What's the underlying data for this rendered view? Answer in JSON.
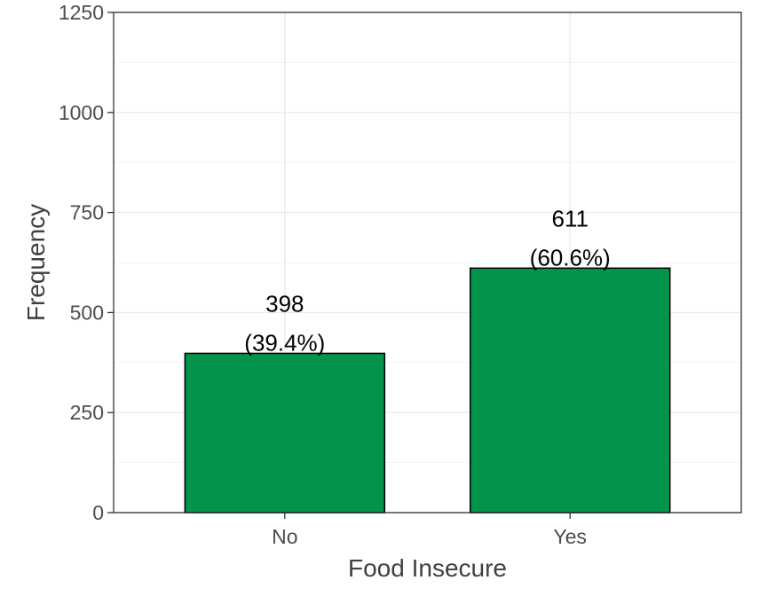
{
  "chart_data": {
    "type": "bar",
    "categories": [
      "No",
      "Yes"
    ],
    "values": [
      398,
      611
    ],
    "value_labels": [
      "398",
      "611"
    ],
    "percent_labels": [
      "(39.4%)",
      "(60.6%)"
    ],
    "xlabel": "Food Insecure",
    "ylabel": "Frequency",
    "ylim": [
      0,
      1250
    ],
    "yticks": [
      0,
      250,
      500,
      750,
      1000,
      1250
    ],
    "ytick_labels": [
      "0",
      "250",
      "500",
      "750",
      "1000",
      "1250"
    ],
    "grid": true,
    "legend": "none",
    "bar_color": "#03934B",
    "bar_edge_color": "#000000"
  }
}
